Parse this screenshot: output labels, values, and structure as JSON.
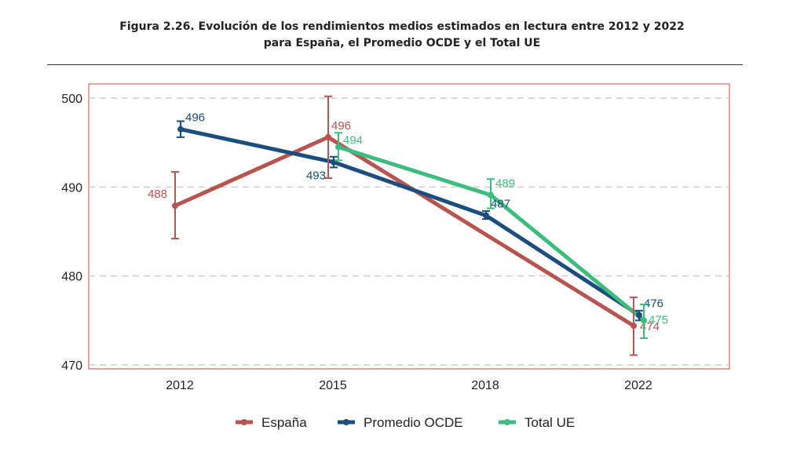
{
  "chart_data": {
    "type": "line",
    "title_line1": "Figura 2.26. Evolución de los rendimientos medios estimados en lectura entre 2012 y 2022",
    "title_line2": "para España, el Promedio OCDE y el Total UE",
    "xlabel": "",
    "ylabel": "",
    "categories": [
      "2012",
      "2015",
      "2018",
      "2022"
    ],
    "ylim": [
      470,
      500
    ],
    "yticks": [
      470,
      480,
      490,
      500
    ],
    "grid": "horizontal dashed",
    "legend_position": "bottom",
    "series": [
      {
        "name": "España",
        "color": "#b85450",
        "values": [
          488,
          496,
          null,
          474
        ],
        "exact": [
          487.9,
          495.6,
          null,
          474.4
        ],
        "labels": [
          "488",
          "496",
          null,
          "474"
        ],
        "ci_low": [
          484.2,
          491.0,
          null,
          471.1
        ],
        "ci_high": [
          491.7,
          500.2,
          null,
          477.6
        ]
      },
      {
        "name": "Promedio OCDE",
        "color": "#1b4d7e",
        "values": [
          496,
          493,
          487,
          476
        ],
        "exact": [
          496.5,
          492.8,
          486.8,
          475.6
        ],
        "labels": [
          "496",
          "493",
          "487",
          "476"
        ],
        "ci_low": [
          495.6,
          492.2,
          486.4,
          475.0
        ],
        "ci_high": [
          497.4,
          493.4,
          487.3,
          476.1
        ]
      },
      {
        "name": "Total UE",
        "color": "#3dbd7d",
        "values": [
          null,
          494,
          489,
          475
        ],
        "exact": [
          null,
          494.5,
          489.1,
          475.0
        ],
        "labels": [
          null,
          "494",
          "489",
          "475"
        ],
        "ci_low": [
          null,
          493.0,
          487.6,
          473.0
        ],
        "ci_high": [
          null,
          496.1,
          490.9,
          476.8
        ]
      }
    ]
  }
}
